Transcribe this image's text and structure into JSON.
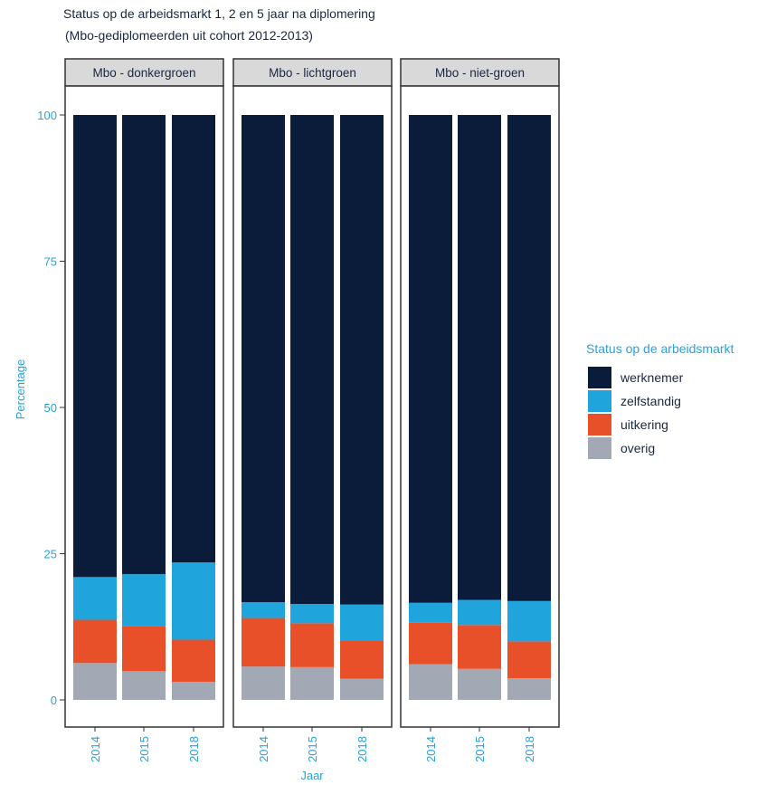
{
  "chart_data": {
    "type": "bar",
    "stacked": true,
    "title": "Status op de arbeidsmarkt 1, 2 en 5 jaar na diplomering",
    "subtitle": "(Mbo-gediplomeerden uit cohort 2012-2013)",
    "xlabel": "Jaar",
    "ylabel": "Percentage",
    "ylim": [
      0,
      100
    ],
    "yticks": [
      "0",
      "25",
      "50",
      "75",
      "100"
    ],
    "categories": [
      "2014",
      "2015",
      "2018"
    ],
    "legend": {
      "title": "Status op de arbeidsmarkt",
      "position": "right"
    },
    "series_meta": [
      {
        "name": "werknemer",
        "color": "#0a1c3a"
      },
      {
        "name": "zelfstandig",
        "color": "#1fa4dc"
      },
      {
        "name": "uitkering",
        "color": "#e8502a"
      },
      {
        "name": "overig",
        "color": "#a2a9b5"
      }
    ],
    "panels": [
      {
        "label": "Mbo - donkergroen",
        "series": [
          {
            "name": "werknemer",
            "values": [
              79.0,
              78.5,
              76.5
            ]
          },
          {
            "name": "zelfstandig",
            "values": [
              7.3,
              8.9,
              13.2
            ]
          },
          {
            "name": "uitkering",
            "values": [
              7.4,
              7.7,
              7.2
            ]
          },
          {
            "name": "overig",
            "values": [
              6.3,
              4.9,
              3.1
            ]
          }
        ]
      },
      {
        "label": "Mbo - lichtgroen",
        "series": [
          {
            "name": "werknemer",
            "values": [
              83.3,
              83.6,
              83.7
            ]
          },
          {
            "name": "zelfstandig",
            "values": [
              2.7,
              3.3,
              6.1
            ]
          },
          {
            "name": "uitkering",
            "values": [
              8.3,
              7.5,
              6.6
            ]
          },
          {
            "name": "overig",
            "values": [
              5.7,
              5.6,
              3.6
            ]
          }
        ]
      },
      {
        "label": "Mbo - niet-groen",
        "series": [
          {
            "name": "werknemer",
            "values": [
              83.4,
              82.9,
              83.1
            ]
          },
          {
            "name": "zelfstandig",
            "values": [
              3.4,
              4.3,
              6.9
            ]
          },
          {
            "name": "uitkering",
            "values": [
              7.1,
              7.5,
              6.3
            ]
          },
          {
            "name": "overig",
            "values": [
              6.1,
              5.3,
              3.7
            ]
          }
        ]
      }
    ]
  }
}
